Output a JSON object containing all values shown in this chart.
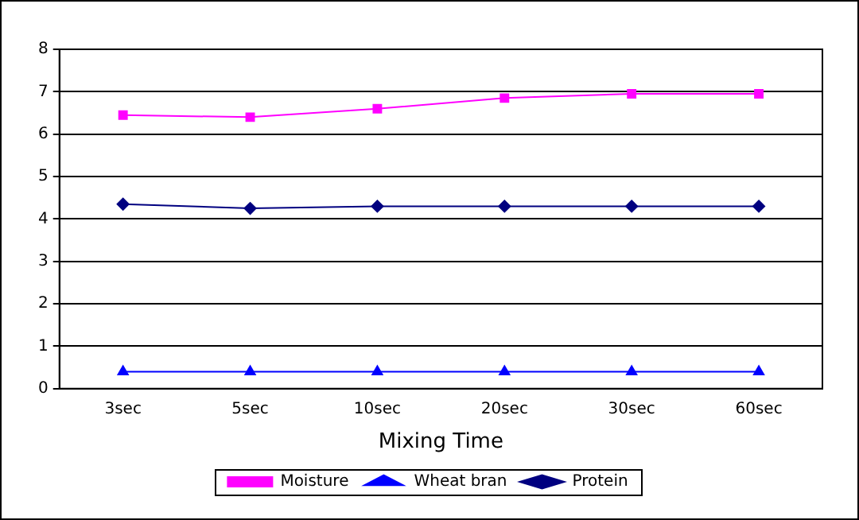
{
  "chart_data": {
    "type": "line",
    "xlabel": "Mixing Time",
    "categories": [
      "3sec",
      "5sec",
      "10sec",
      "20sec",
      "30sec",
      "60sec"
    ],
    "series": [
      {
        "name": "Moisture",
        "color": "#ff00ff",
        "marker": "square",
        "values": [
          6.45,
          6.4,
          6.6,
          6.85,
          6.95,
          6.95
        ]
      },
      {
        "name": "Wheat bran",
        "color": "#0000ff",
        "marker": "triangle",
        "values": [
          0.4,
          0.4,
          0.4,
          0.4,
          0.4,
          0.4
        ]
      },
      {
        "name": "Protein",
        "color": "#000080",
        "marker": "diamond",
        "values": [
          4.35,
          4.25,
          4.3,
          4.3,
          4.3,
          4.3
        ]
      }
    ],
    "ylim": [
      0,
      8
    ],
    "yticks": [
      0,
      1,
      2,
      3,
      4,
      5,
      6,
      7,
      8
    ],
    "grid": "y",
    "legend": "bottom",
    "line_style": "solid"
  }
}
